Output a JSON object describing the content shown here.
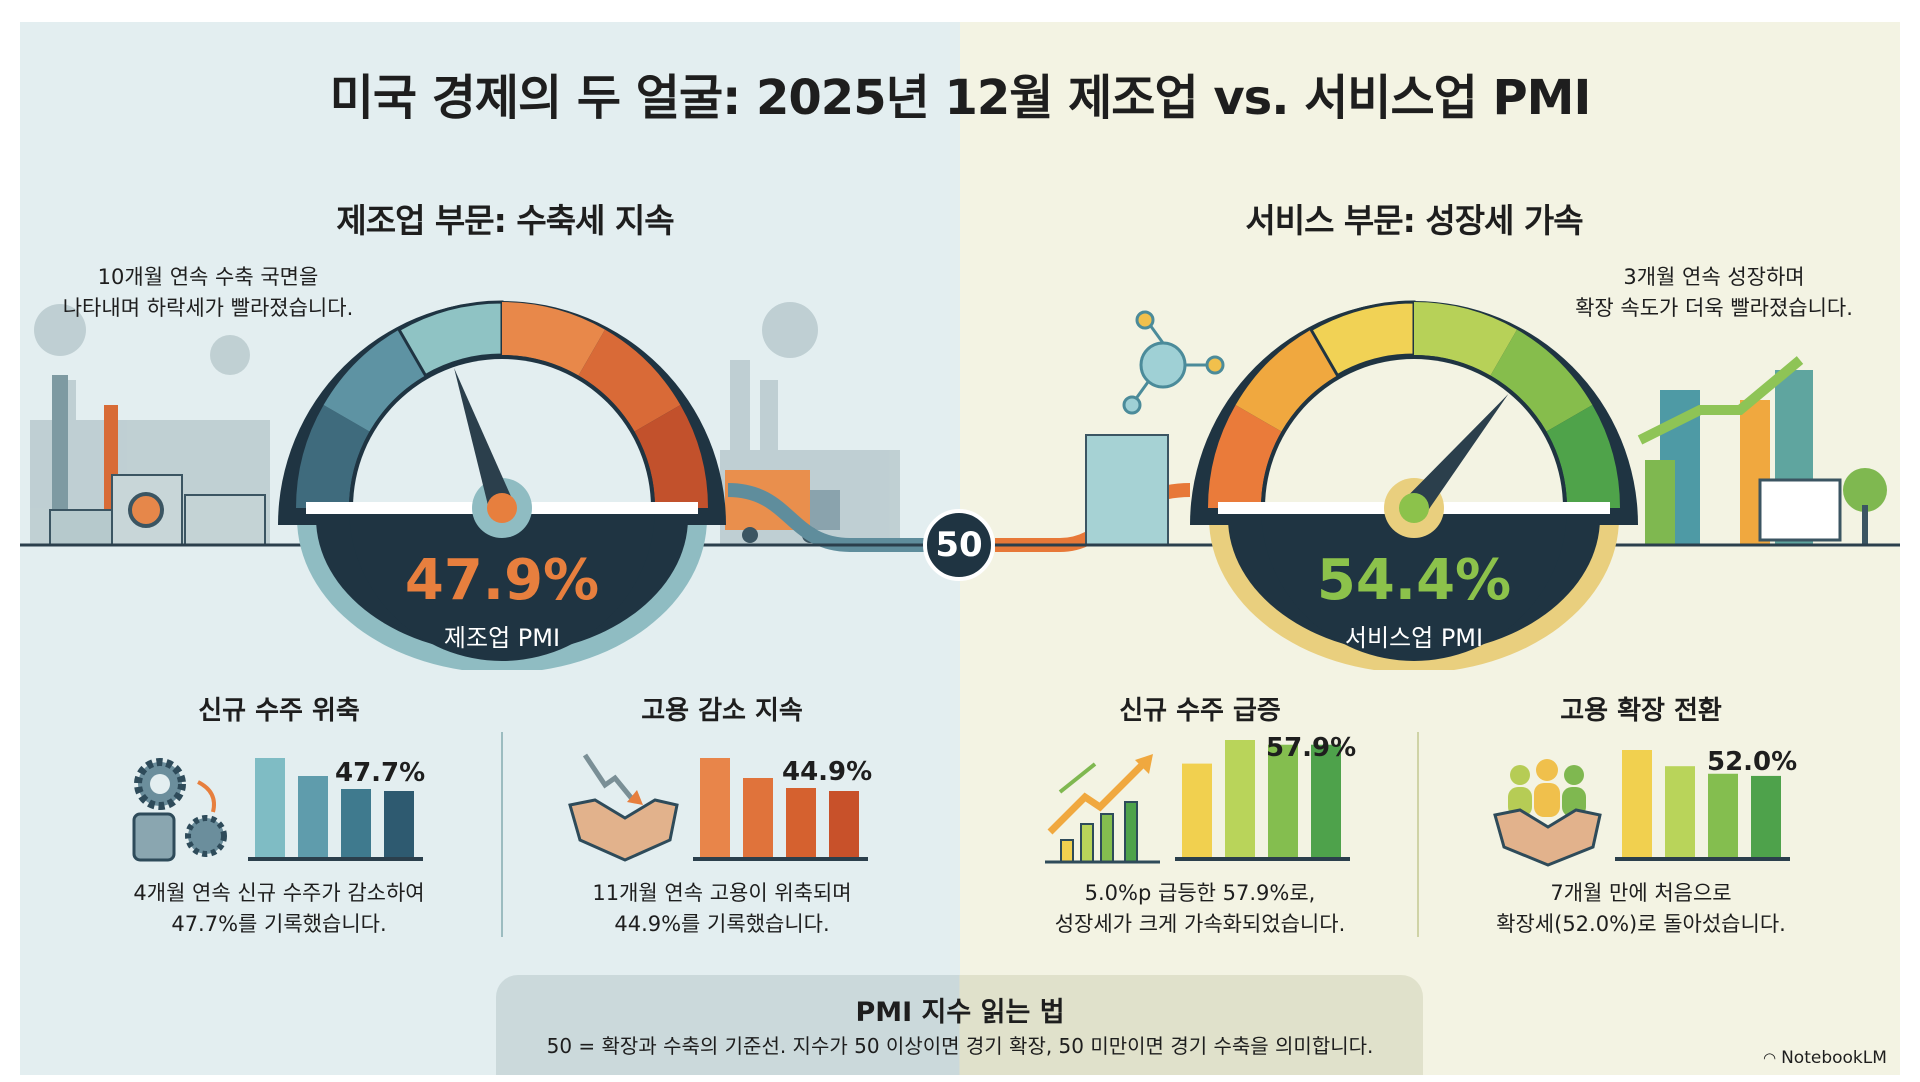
{
  "title": "미국 경제의 두 얼굴: 2025년 12월 제조업 vs. 서비스업 PMI",
  "manufacturing": {
    "section_title": "제조업 부문: 수축세 지속",
    "note": [
      "10개월 연속 수축 국면을",
      "나타내며 하락세가 빨라졌습니다."
    ],
    "value": "47.9%",
    "label": "제조업 PMI",
    "pmi": 47.9,
    "arc_colors": [
      "#3f6b7d",
      "#5e93a3",
      "#8fc3c4",
      "#e8884a",
      "#d96a37",
      "#c2512c"
    ],
    "accent": "#e77f3e",
    "new_orders": {
      "title": "신규 수주 위축",
      "value": "47.7%",
      "bars": [
        1.0,
        0.82,
        0.69,
        0.67
      ],
      "colors": [
        "#7fbcc4",
        "#5f9cac",
        "#3f7a8e",
        "#2e5a70"
      ],
      "caption": [
        "4개월 연속 신규 수주가 감소하여",
        "47.7%를 기록했습니다."
      ]
    },
    "employment": {
      "title": "고용 감소 지속",
      "value": "44.9%",
      "bars": [
        1.0,
        0.8,
        0.7,
        0.67
      ],
      "colors": [
        "#e8854a",
        "#e0733b",
        "#d5612f",
        "#c8512a"
      ],
      "caption": [
        "11개월 연속 고용이 위축되며",
        "44.9%를 기록했습니다."
      ]
    }
  },
  "services": {
    "section_title": "서비스 부문: 성장세 가속",
    "note": [
      "3개월 연속 성장하며",
      "확장 속도가 더욱 빨라졌습니다."
    ],
    "value": "54.4%",
    "label": "서비스업 PMI",
    "pmi": 54.4,
    "arc_colors": [
      "#ea7b3a",
      "#f0a83f",
      "#f1d255",
      "#b7d158",
      "#86bd4c",
      "#4fa34a"
    ],
    "accent": "#8cc24b",
    "new_orders": {
      "title": "신규 수주 급증",
      "value": "57.9%",
      "bars": [
        0.8,
        1.0,
        0.96,
        0.96
      ],
      "colors": [
        "#f1d04f",
        "#b9d45a",
        "#84be4f",
        "#4ea24b"
      ],
      "caption": [
        "5.0%p 급등한 57.9%로,",
        "성장세가 크게 가속화되었습니다."
      ]
    },
    "employment": {
      "title": "고용 확장 전환",
      "value": "52.0%",
      "bars": [
        1.0,
        0.85,
        0.78,
        0.76
      ],
      "colors": [
        "#f1d04f",
        "#b9d45a",
        "#84be4f",
        "#4ea24b"
      ],
      "caption": [
        "7개월 만에 처음으로",
        "확장세(52.0%)로 돌아섰습니다."
      ]
    }
  },
  "threshold": "50",
  "guide": {
    "title": "PMI 지수 읽는 법",
    "text": "50 = 확장과 수축의 기준선. 지수가 50 이상이면 경기 확장, 50 미만이면 경기 수축을 의미합니다."
  },
  "brand": "NotebookLM"
}
